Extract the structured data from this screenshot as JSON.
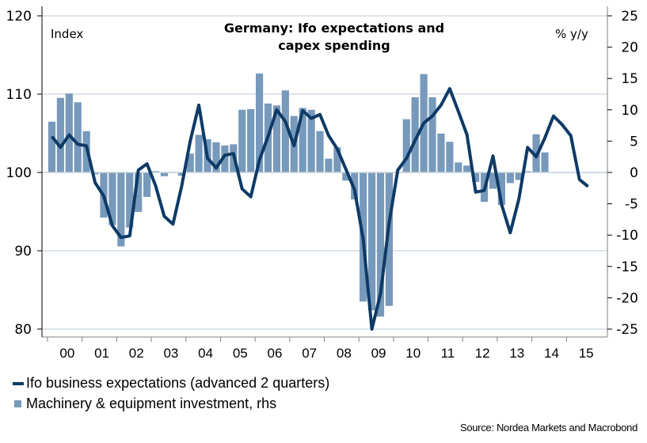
{
  "chart_data": {
    "type": "bar+line",
    "title": "Germany: Ifo expectations and capex spending",
    "title_lines": [
      "Germany: Ifo expectations and",
      "capex spending"
    ],
    "left_axis_label": "Index",
    "right_axis_label": "% y/y",
    "left_ylim": [
      80,
      120
    ],
    "left_ticks": [
      "80",
      "90",
      "100",
      "110",
      "120"
    ],
    "right_ylim": [
      -25,
      25
    ],
    "right_ticks": [
      "-25",
      "-20",
      "-15",
      "-10",
      "-5",
      "0",
      "5",
      "10",
      "15",
      "20",
      "25"
    ],
    "x_tick_labels": [
      "00",
      "01",
      "02",
      "03",
      "04",
      "05",
      "06",
      "07",
      "08",
      "09",
      "10",
      "11",
      "12",
      "13",
      "14",
      "15"
    ],
    "grid": true,
    "legend_placement": "bottom-left",
    "series": [
      {
        "name": "Ifo business expectations (advanced 2 quarters)",
        "type": "line",
        "axis": "left",
        "color": "#0e3a66",
        "frequency": "quarterly",
        "start": "2000Q1",
        "values": [
          104.6,
          103.2,
          104.8,
          103.6,
          103.4,
          98.7,
          97.0,
          93.2,
          91.7,
          91.9,
          100.3,
          101.1,
          98.3,
          94.4,
          93.4,
          98.2,
          104.0,
          108.6,
          101.8,
          100.6,
          102.2,
          102.4,
          97.9,
          96.9,
          101.6,
          104.6,
          108.0,
          106.5,
          103.4,
          107.9,
          106.9,
          107.4,
          104.7,
          103.0,
          100.4,
          97.8,
          91.5,
          80.0,
          84.5,
          93.6,
          100.3,
          101.8,
          104.1,
          106.3,
          107.2,
          108.6,
          110.7,
          107.8,
          104.8,
          97.5,
          97.7,
          102.1,
          95.9,
          92.3,
          96.6,
          103.2,
          102.0,
          104.4,
          107.2,
          106.1,
          104.7,
          99.1,
          98.2
        ]
      },
      {
        "name": "Machinery & equipment investment, rhs",
        "type": "bar",
        "axis": "right",
        "color": "#7799bb",
        "frequency": "quarterly",
        "start": "2000Q1",
        "values": [
          8.1,
          11.9,
          12.6,
          11.2,
          6.6,
          -0.3,
          -7.2,
          -8.4,
          -11.8,
          -8.8,
          -6.3,
          -3.9,
          0.2,
          -0.6,
          0.1,
          -0.5,
          3.0,
          6.0,
          5.3,
          4.8,
          4.3,
          4.5,
          10.0,
          10.1,
          15.8,
          11.0,
          10.7,
          13.1,
          9.0,
          10.3,
          10.0,
          6.6,
          2.2,
          4.0,
          -1.3,
          -4.3,
          -20.6,
          -22.0,
          -23.0,
          -21.3,
          0.1,
          8.5,
          12.0,
          15.7,
          12.0,
          6.2,
          4.9,
          1.6,
          1.1,
          -1.5,
          -4.7,
          -2.6,
          -5.2,
          -1.7,
          -1.2,
          0.2,
          6.1,
          3.2,
          0,
          0
        ],
        "note": "values are rough readings from the plot; last plotted bar is 2014Q3"
      }
    ]
  },
  "legend": {
    "items": [
      {
        "label": "Ifo business expectations (advanced 2 quarters)",
        "marker": "line",
        "color": "#0e3a66"
      },
      {
        "label": "Machinery & equipment investment, rhs",
        "marker": "square",
        "color": "#7799bb"
      }
    ]
  },
  "source": "Source: Nordea Markets and Macrobond"
}
